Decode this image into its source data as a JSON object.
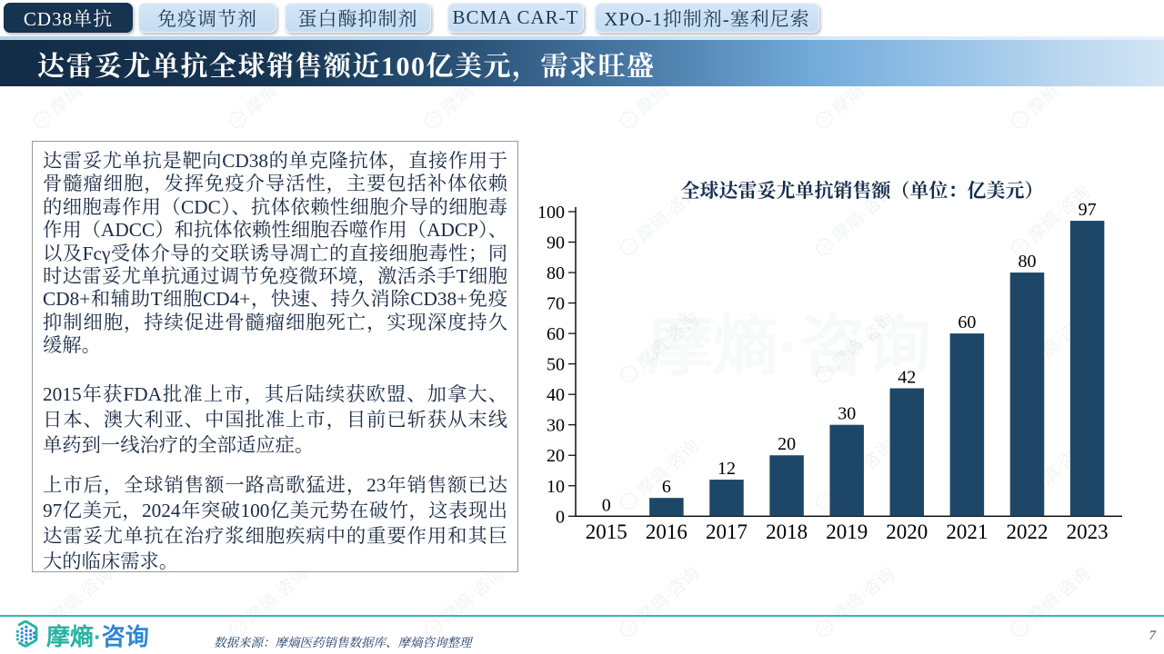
{
  "tabs": {
    "items": [
      {
        "label": "CD38单抗",
        "active": true
      },
      {
        "label": "免疫调节剂",
        "active": false
      },
      {
        "label": "蛋白酶抑制剂",
        "active": false
      },
      {
        "label": "BCMA CAR-T",
        "active": false
      },
      {
        "label": "XPO-1抑制剂-塞利尼索",
        "active": false
      }
    ]
  },
  "banner": {
    "title": "达雷妥尤单抗全球销售额近100亿美元，需求旺盛"
  },
  "textbox": {
    "paragraphs": {
      "p1": "达雷妥尤单抗是靶向CD38的单克隆抗体，直接作用于骨髓瘤细胞，发挥免疫介导活性，主要包括补体依赖的细胞毒作用（CDC）、抗体依赖性细胞介导的细胞毒作用（ADCC）和抗体依赖性细胞吞噬作用（ADCP）、以及Fcγ受体介导的交联诱导凋亡的直接细胞毒性；同时达雷妥尤单抗通过调节免疫微环境，激活杀手T细胞CD8+和辅助T细胞CD4+，快速、持久消除CD38+免疫抑制细胞，持续促进骨髓瘤细胞死亡，实现深度持久缓解。",
      "p2": "2015年获FDA批准上市，其后陆续获欧盟、加拿大、日本、澳大利亚、中国批准上市，目前已斩获从末线单药到一线治疗的全部适应症。",
      "p3": "上市后，全球销售额一路高歌猛进，23年销售额已达97亿美元，2024年突破100亿美元势在破竹，这表现出达雷妥尤单抗在治疗浆细胞疾病中的重要作用和其巨大的临床需求。"
    }
  },
  "chart_data": {
    "type": "bar",
    "title": "全球达雷妥尤单抗销售额（单位：亿美元）",
    "categories": [
      "2015",
      "2016",
      "2017",
      "2018",
      "2019",
      "2020",
      "2021",
      "2022",
      "2023"
    ],
    "values": [
      0,
      6,
      12,
      20,
      30,
      42,
      60,
      80,
      97
    ],
    "ylabel": "",
    "xlabel": "",
    "ylim": [
      0,
      100
    ],
    "ytick_step": 10,
    "grid": false,
    "legend": false,
    "bar_color": "#1e4767",
    "label_color": "#000000"
  },
  "footer": {
    "logo_primary": "摩熵",
    "logo_dot": "·",
    "logo_secondary": "咨询",
    "source": "数据来源：摩熵医药销售数据库、摩熵咨询整理",
    "page_number": "7"
  },
  "watermark": {
    "text": "摩熵·咨询"
  },
  "colors": {
    "accent_navy": "#16334f",
    "tab_inactive_bg": "#c9def2",
    "bar_fill": "#1e4767",
    "footer_teal": "#3cb6aa",
    "logo_teal": "#29b2a2",
    "logo_blue": "#2e87d3"
  }
}
